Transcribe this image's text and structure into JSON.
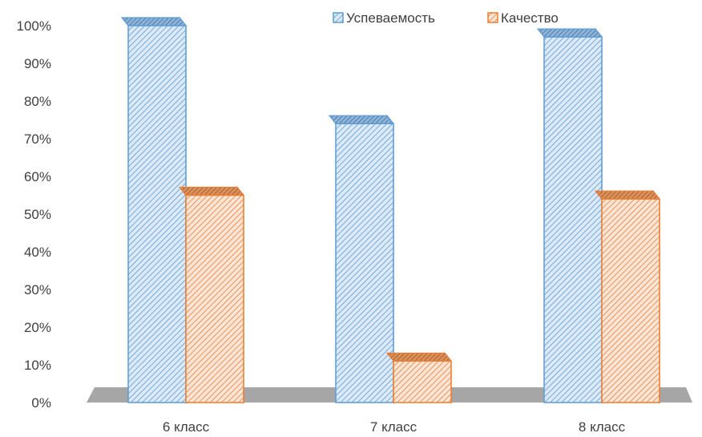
{
  "chart_data": {
    "type": "bar",
    "categories": [
      "6 класс",
      "7 класс",
      "8 класс"
    ],
    "series": [
      {
        "name": "Успеваемость",
        "values": [
          100,
          74,
          97
        ],
        "color": "#5b9bd5"
      },
      {
        "name": "Качество",
        "values": [
          55,
          11,
          54
        ],
        "color": "#ed7d31"
      }
    ],
    "ylim": [
      0,
      100
    ],
    "yticks": [
      "0%",
      "10%",
      "20%",
      "30%",
      "40%",
      "50%",
      "60%",
      "70%",
      "80%",
      "90%",
      "100%"
    ],
    "legend_position": "top",
    "grid": false,
    "style": "3d-hatched"
  }
}
